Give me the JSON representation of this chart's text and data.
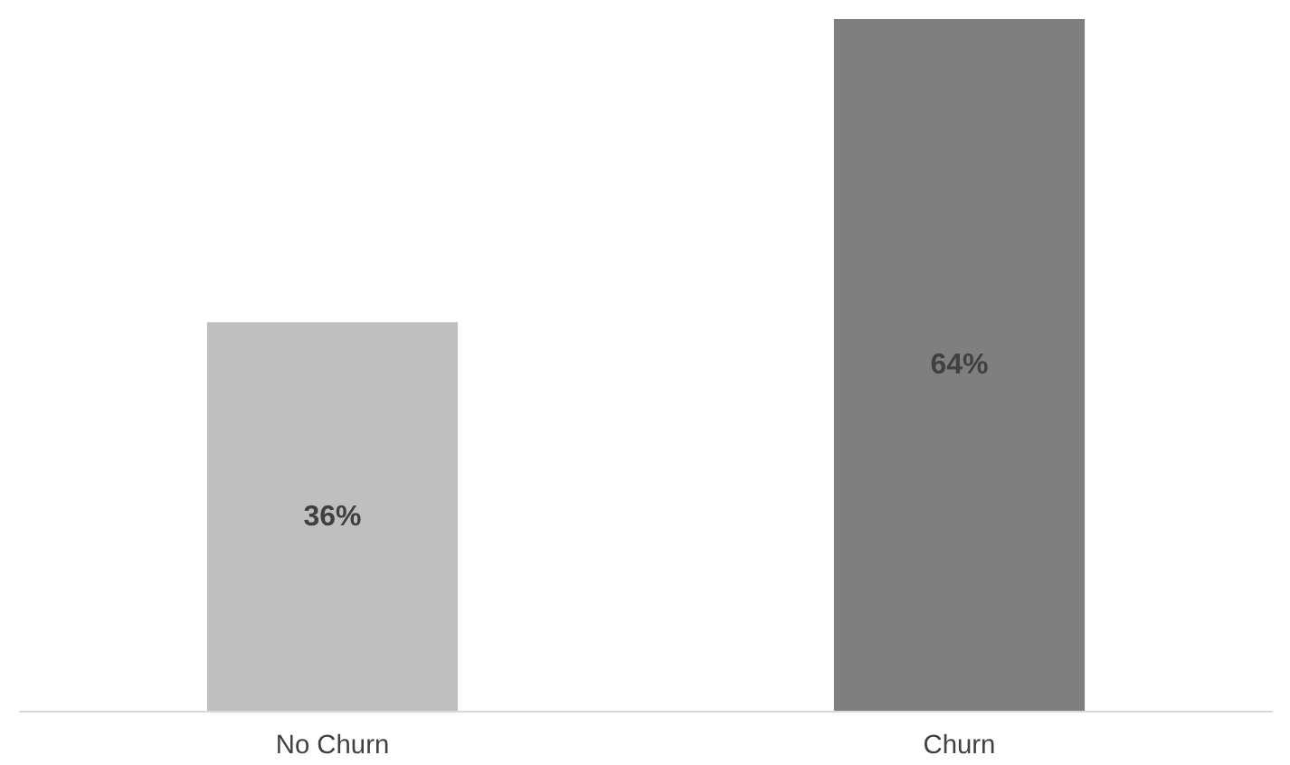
{
  "chart_data": {
    "type": "bar",
    "categories": [
      "No Churn",
      "Churn"
    ],
    "values": [
      36,
      64
    ],
    "colors": [
      "#bfbfbf",
      "#7f7f7f"
    ],
    "value_labels": [
      "36%",
      "64%"
    ]
  }
}
